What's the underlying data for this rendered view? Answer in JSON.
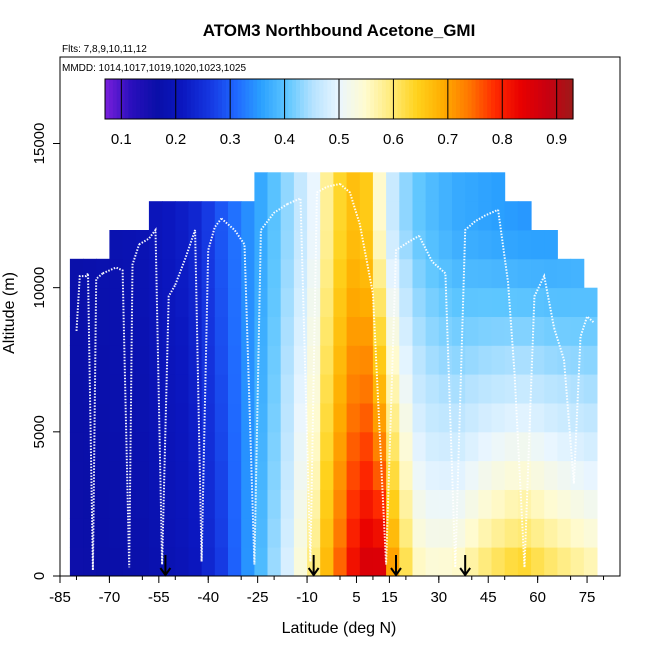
{
  "chart_data": {
    "type": "heatmap",
    "title": "ATOM3 Northbound Acetone_GMI",
    "flights_label": "Flts: 7,8,9,10,11,12",
    "dates_label": "MMDD: 1014,1017,1019,1020,1023,1025",
    "xlabel": "Latitude (deg N)",
    "ylabel": "Altitude (m)",
    "xlim": [
      -85,
      85
    ],
    "ylim": [
      0,
      18000
    ],
    "x_ticks": [
      -85,
      -70,
      -55,
      -40,
      -25,
      -10,
      5,
      15,
      30,
      45,
      60,
      75
    ],
    "y_ticks": [
      0,
      5000,
      10000,
      15000
    ],
    "colorbar": {
      "range": [
        0.07,
        0.93
      ],
      "tick_values": [
        0.1,
        0.2,
        0.3,
        0.4,
        0.5,
        0.6,
        0.7,
        0.8,
        0.9
      ],
      "tick_labels": [
        "0.1",
        "0.2",
        "0.3",
        "0.4",
        "0.5",
        "0.6",
        "0.7",
        "0.8",
        "0.9"
      ],
      "colors": [
        "#7a1fdc",
        "#2a0fbd",
        "#0a0fa8",
        "#0b17c0",
        "#1536e0",
        "#1f66ff",
        "#2aa0ff",
        "#5ec6ff",
        "#b6e3ff",
        "#eaf6ff",
        "#fffbd0",
        "#ffeb7a",
        "#ffd21c",
        "#ffad00",
        "#ff7700",
        "#ff2a00",
        "#e80000",
        "#c80010",
        "#9e1a1a"
      ]
    },
    "lat_bins": [
      -80,
      -76,
      -72,
      -68,
      -64,
      -60,
      -56,
      -52,
      -48,
      -44,
      -40,
      -36,
      -32,
      -28,
      -24,
      -20,
      -16,
      -12,
      -8,
      -4,
      0,
      4,
      8,
      12,
      16,
      20,
      24,
      28,
      32,
      36,
      40,
      44,
      48,
      52,
      56,
      60,
      64,
      68,
      72,
      76
    ],
    "lat_bin_width": 4,
    "alt_bin_width": 1000,
    "column_tops": [
      10500,
      10500,
      10500,
      11500,
      11500,
      11500,
      12500,
      12500,
      12500,
      12500,
      12500,
      12500,
      12500,
      12500,
      13500,
      13500,
      13500,
      13500,
      13500,
      13500,
      13500,
      13500,
      13500,
      13500,
      13500,
      13500,
      13500,
      13500,
      13500,
      13500,
      13500,
      13500,
      13500,
      12500,
      12500,
      11500,
      11500,
      10500,
      10500,
      9500
    ],
    "acetone_profile": {
      "description_units": "ppb",
      "anchors_lat": [
        -80,
        -60,
        -45,
        -35,
        -25,
        -15,
        -8,
        -3,
        2,
        7,
        12,
        17,
        25,
        35,
        45,
        55,
        65,
        76
      ],
      "anchors_lower": [
        0.16,
        0.17,
        0.2,
        0.27,
        0.38,
        0.5,
        0.6,
        0.7,
        0.8,
        0.87,
        0.88,
        0.68,
        0.55,
        0.56,
        0.62,
        0.66,
        0.62,
        0.58
      ],
      "anchors_upper": [
        0.17,
        0.19,
        0.23,
        0.3,
        0.36,
        0.44,
        0.5,
        0.6,
        0.66,
        0.68,
        0.55,
        0.45,
        0.4,
        0.37,
        0.36,
        0.35,
        0.35,
        0.36
      ]
    },
    "arrows_lat": [
      -53,
      -8,
      17,
      38
    ],
    "flight_tracks": [
      {
        "lat": [
          -80,
          -79,
          -77,
          -76.5,
          -75,
          -74,
          -73,
          -72
        ],
        "alt": [
          8500,
          10400,
          10400,
          10500,
          200,
          10300,
          10400,
          10500
        ]
      },
      {
        "lat": [
          -72,
          -70,
          -68,
          -66,
          -64,
          -63,
          -61
        ],
        "alt": [
          10500,
          10600,
          10700,
          10600,
          300,
          10800,
          11500
        ]
      },
      {
        "lat": [
          -61,
          -58,
          -56,
          -54,
          -52,
          -50
        ],
        "alt": [
          11500,
          11700,
          12000,
          400,
          9700,
          10100
        ]
      },
      {
        "lat": [
          -50,
          -47,
          -44,
          -42,
          -40,
          -38,
          -36
        ],
        "alt": [
          10100,
          11000,
          12000,
          500,
          11300,
          12100,
          12400
        ]
      },
      {
        "lat": [
          -36,
          -32,
          -29,
          -26,
          -24,
          -20,
          -16
        ],
        "alt": [
          12400,
          12000,
          11500,
          400,
          12000,
          12600,
          12900
        ]
      },
      {
        "lat": [
          -16,
          -12,
          -9,
          -7,
          -4,
          0
        ],
        "alt": [
          12900,
          13100,
          500,
          13300,
          13500,
          13600
        ]
      },
      {
        "lat": [
          0,
          3,
          6,
          10,
          14,
          17,
          21,
          24
        ],
        "alt": [
          13600,
          13300,
          12200,
          9800,
          400,
          11300,
          11600,
          11800
        ]
      },
      {
        "lat": [
          24,
          28,
          32,
          35,
          38,
          41,
          44,
          48
        ],
        "alt": [
          11800,
          10900,
          10500,
          300,
          12000,
          12300,
          12500,
          12700
        ]
      },
      {
        "lat": [
          48,
          51,
          53,
          56,
          59,
          62,
          65
        ],
        "alt": [
          12700,
          10200,
          7000,
          300,
          9700,
          10400,
          8600
        ]
      },
      {
        "lat": [
          65,
          68,
          71,
          73,
          75,
          77
        ],
        "alt": [
          8600,
          7500,
          3200,
          8300,
          9000,
          8800
        ]
      }
    ]
  }
}
